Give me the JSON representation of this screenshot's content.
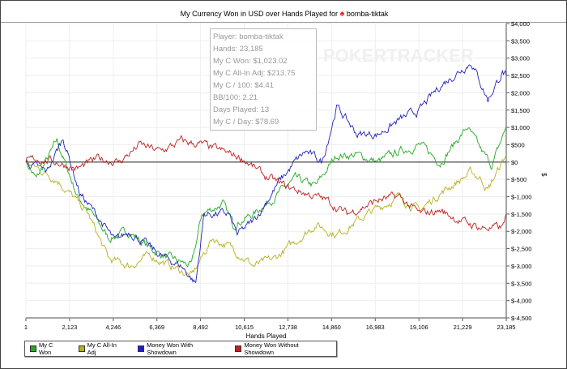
{
  "chart_data": {
    "type": "line",
    "title": "My Currency Won in USD over Hands Played for",
    "player": "bomba-tiktak",
    "xlabel": "Hands Played",
    "ylabel": "$",
    "xlim": [
      1,
      23185
    ],
    "ylim": [
      -4500,
      4000
    ],
    "x_ticks": [
      "1",
      "2,123",
      "4,246",
      "6,369",
      "8,492",
      "10,615",
      "12,738",
      "14,860",
      "16,983",
      "19,106",
      "21,229",
      "23,185"
    ],
    "y_ticks": [
      "$4,000",
      "$3,500",
      "$3,000",
      "$2,500",
      "$2,000",
      "$1,500",
      "$1,000",
      "$500",
      "$0",
      "$-500",
      "$-1,000",
      "$-1,500",
      "$-2,000",
      "$-2,500",
      "$-3,000",
      "$-3,500",
      "$-4,000",
      "$-4,500"
    ],
    "grid": true,
    "legend_position": "bottom-left",
    "series": [
      {
        "name": "My C Won",
        "color": "#22aa22",
        "points": [
          [
            1,
            0
          ],
          [
            500,
            -500
          ],
          [
            1500,
            600
          ],
          [
            2500,
            -1000
          ],
          [
            3200,
            -1500
          ],
          [
            4000,
            -2200
          ],
          [
            5000,
            -2000
          ],
          [
            6000,
            -2500
          ],
          [
            7000,
            -2800
          ],
          [
            8000,
            -3000
          ],
          [
            8500,
            -1500
          ],
          [
            9500,
            -1200
          ],
          [
            10000,
            -1800
          ],
          [
            11000,
            -1500
          ],
          [
            12000,
            -1000
          ],
          [
            13000,
            -500
          ],
          [
            14000,
            -700
          ],
          [
            15000,
            200
          ],
          [
            16000,
            200
          ],
          [
            17000,
            0
          ],
          [
            18000,
            300
          ],
          [
            19000,
            500
          ],
          [
            20000,
            0
          ],
          [
            21300,
            1000
          ],
          [
            22000,
            300
          ],
          [
            22500,
            -100
          ],
          [
            23185,
            1023
          ]
        ]
      },
      {
        "name": "My C All-In Adj",
        "color": "#b8b020",
        "points": [
          [
            1,
            0
          ],
          [
            1500,
            -500
          ],
          [
            3000,
            -1500
          ],
          [
            4000,
            -2800
          ],
          [
            5000,
            -3000
          ],
          [
            6000,
            -2700
          ],
          [
            7000,
            -3000
          ],
          [
            8000,
            -3300
          ],
          [
            9000,
            -2200
          ],
          [
            10000,
            -2500
          ],
          [
            11000,
            -3000
          ],
          [
            12000,
            -2800
          ],
          [
            13000,
            -2300
          ],
          [
            14000,
            -1800
          ],
          [
            15000,
            -2100
          ],
          [
            16500,
            -1500
          ],
          [
            18000,
            -1000
          ],
          [
            19000,
            -1400
          ],
          [
            20000,
            -900
          ],
          [
            21500,
            -300
          ],
          [
            22000,
            -500
          ],
          [
            22300,
            -800
          ],
          [
            23185,
            214
          ]
        ]
      },
      {
        "name": "Money Won With Showdown",
        "color": "#2222bb",
        "points": [
          [
            1,
            0
          ],
          [
            1000,
            -300
          ],
          [
            1800,
            700
          ],
          [
            2600,
            -900
          ],
          [
            3500,
            -1600
          ],
          [
            4300,
            -2300
          ],
          [
            5000,
            -2000
          ],
          [
            6500,
            -2700
          ],
          [
            7500,
            -3000
          ],
          [
            8200,
            -3500
          ],
          [
            8600,
            -1500
          ],
          [
            9800,
            -1500
          ],
          [
            10200,
            -2100
          ],
          [
            11000,
            -1700
          ],
          [
            12200,
            -600
          ],
          [
            13000,
            0
          ],
          [
            13500,
            300
          ],
          [
            14300,
            0
          ],
          [
            15000,
            1600
          ],
          [
            16000,
            800
          ],
          [
            17000,
            800
          ],
          [
            18000,
            1200
          ],
          [
            19000,
            1500
          ],
          [
            20000,
            2200
          ],
          [
            21500,
            2900
          ],
          [
            22300,
            1800
          ],
          [
            23000,
            2600
          ],
          [
            23185,
            2500
          ]
        ]
      },
      {
        "name": "Money Won Without Showdown",
        "color": "#bb2222",
        "points": [
          [
            1,
            0
          ],
          [
            500,
            100
          ],
          [
            1500,
            0
          ],
          [
            2500,
            -200
          ],
          [
            3500,
            100
          ],
          [
            4500,
            0
          ],
          [
            5500,
            500
          ],
          [
            6500,
            300
          ],
          [
            7500,
            600
          ],
          [
            8500,
            500
          ],
          [
            9500,
            300
          ],
          [
            10500,
            100
          ],
          [
            11500,
            -400
          ],
          [
            12500,
            -700
          ],
          [
            13500,
            -900
          ],
          [
            14500,
            -1100
          ],
          [
            15500,
            -1500
          ],
          [
            17000,
            -1100
          ],
          [
            18000,
            -1000
          ],
          [
            19000,
            -1500
          ],
          [
            20000,
            -1400
          ],
          [
            21000,
            -1700
          ],
          [
            22000,
            -1900
          ],
          [
            23000,
            -1900
          ],
          [
            23185,
            -1500
          ]
        ]
      }
    ]
  },
  "tooltip": [
    "Player: bomba-tiktak",
    "Hands: 23,185",
    "My C Won: $1,023.02",
    "My C All-In Adj: $213.75",
    "My C / 100: $4.41",
    "BB/100: 2.21",
    "Days Played: 13",
    "My C / Day: $78.69"
  ],
  "watermark": "POKERTRACKER"
}
